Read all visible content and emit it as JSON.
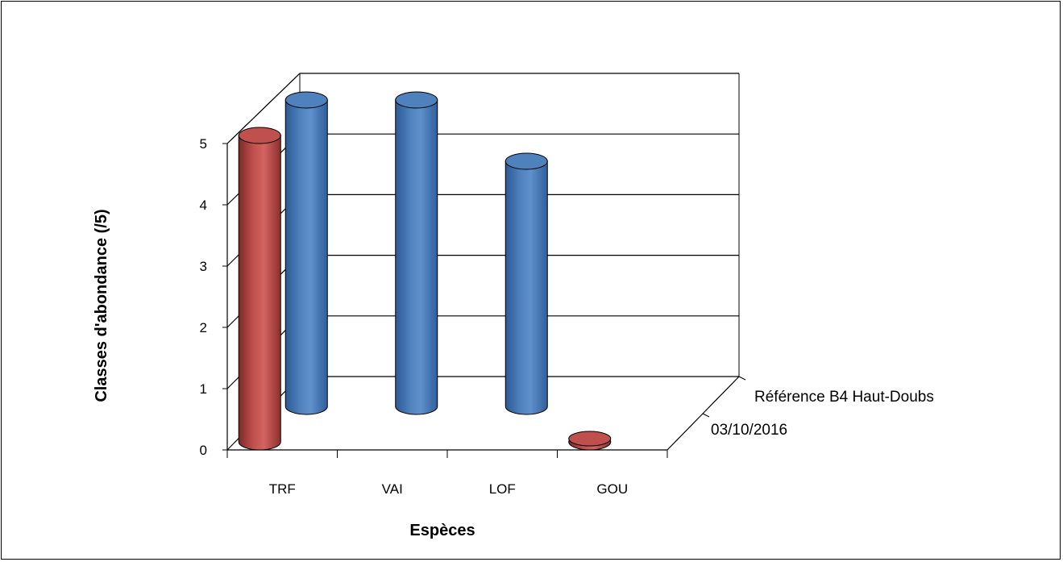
{
  "chart_data": {
    "type": "bar",
    "style": "3d-cylinder",
    "categories": [
      "TRF",
      "VAI",
      "LOF",
      "GOU"
    ],
    "series": [
      {
        "name": "03/10/2016",
        "values": [
          5,
          null,
          null,
          0
        ],
        "color": "#C0504D"
      },
      {
        "name": "Référence B4 Haut-Doubs",
        "values": [
          5,
          5,
          4,
          null
        ],
        "color": "#4F81BD"
      }
    ],
    "xlabel": "Espèces",
    "ylabel": "Classes d'abondance  (/5)",
    "ylim": [
      0,
      5
    ],
    "yticks": [
      "0",
      "1",
      "2",
      "3",
      "4",
      "5"
    ],
    "grid": true,
    "legend": "depth-axis"
  }
}
